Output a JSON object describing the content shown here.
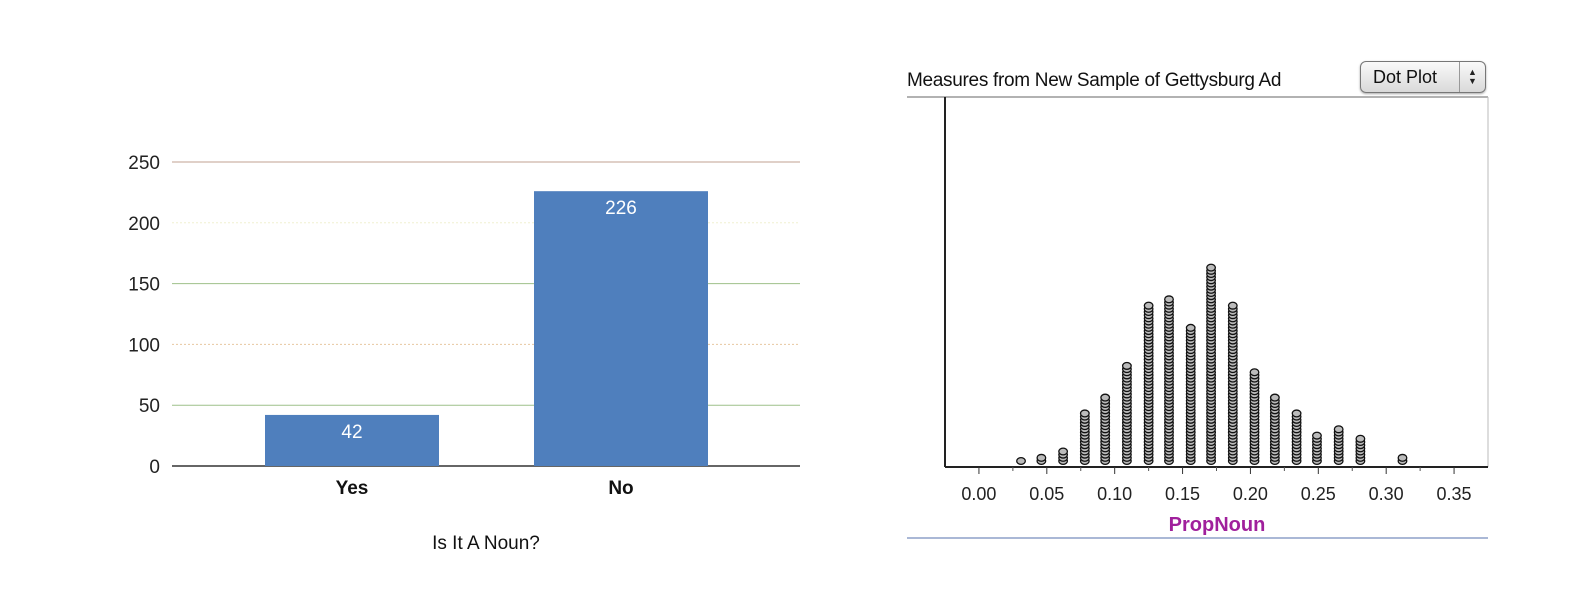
{
  "chart_data": [
    {
      "type": "bar",
      "categories": [
        "Yes",
        "No"
      ],
      "values": [
        42,
        226
      ],
      "data_labels": [
        "42",
        "226"
      ],
      "xlabel": "Is It A Noun?",
      "ylabel": "",
      "ylim": [
        0,
        250
      ],
      "yticks": [
        "0",
        "50",
        "100",
        "150",
        "200",
        "250"
      ],
      "grid": true,
      "bar_color": "#4f7fbd",
      "label_color": "#ffffff"
    },
    {
      "type": "scatter",
      "subtype": "dot plot",
      "title": "Measures from New Sample of Gettysburg  Ad",
      "plot_type_select": "Dot Plot",
      "xlabel": "PropNoun",
      "xlabel_color": "#a0209c",
      "xlim": [
        -0.025,
        0.375
      ],
      "xticks": [
        "0.00",
        "0.05",
        "0.10",
        "0.15",
        "0.20",
        "0.25",
        "0.30",
        "0.35"
      ],
      "x": [
        0.031,
        0.046,
        0.062,
        0.078,
        0.093,
        0.109,
        0.125,
        0.14,
        0.156,
        0.171,
        0.187,
        0.203,
        0.218,
        0.234,
        0.249,
        0.265,
        0.281,
        0.312
      ],
      "counts": [
        1,
        2,
        4,
        16,
        21,
        31,
        50,
        52,
        43,
        62,
        50,
        29,
        21,
        16,
        9,
        11,
        8,
        2
      ],
      "dot_color": "#bbbbbb",
      "dot_stroke": "#111111"
    }
  ]
}
